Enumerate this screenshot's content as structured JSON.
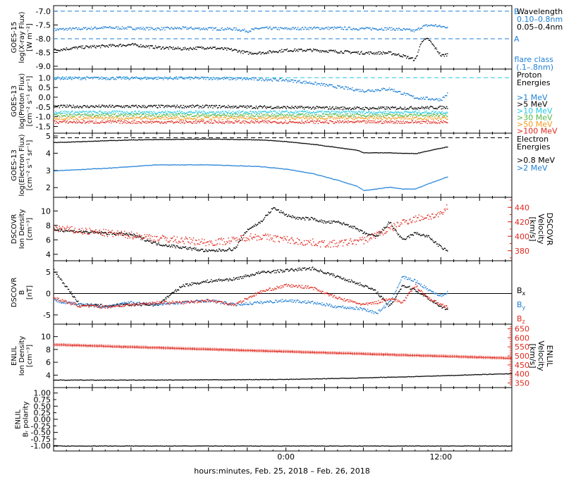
{
  "xaxis": {
    "label": "hours:minutes, Feb. 25, 2018 – Feb. 26, 2018",
    "xlim": [
      -18,
      17.5
    ],
    "ticks": [
      {
        "x": 0,
        "label": "0:00"
      },
      {
        "x": 12,
        "label": "12:00"
      }
    ]
  },
  "colors": {
    "black": "#000000",
    "blue": "#1e7fd6",
    "red": "#e0281e",
    "cyan": "#22c8e0",
    "green": "#56b847",
    "orange": "#f39a1f",
    "xray_long": "#1e7fd6",
    "xray_short": "#000000"
  },
  "chart_data": [
    {
      "id": "goes15-xray",
      "type": "line",
      "ylabel_lines": [
        "GOES-15",
        "log(X-ray Flux)",
        "[W m⁻²]"
      ],
      "ylim": [
        -9.0,
        -6.9
      ],
      "yticks": [
        -7.0,
        -7.5,
        -8.0,
        -8.5,
        -9.0
      ],
      "ytick_labels": [
        "-7.0",
        "-7.5",
        "-8.0",
        "-8.5",
        "-9.0"
      ],
      "ref_lines": [
        {
          "y": -7.0,
          "label": "B",
          "style": "dashed"
        },
        {
          "y": -8.0,
          "label": "A",
          "style": "dashed"
        }
      ],
      "legend_title": "Wavelength",
      "legend": [
        {
          "name": "0.10–0.8nm",
          "color": "#1e7fd6"
        },
        {
          "name": "0.05–0.4nm",
          "color": "#000000"
        }
      ],
      "legend_extra": [
        "flare class",
        "(.1–.8nm)"
      ],
      "series": [
        {
          "name": "0.10–0.8nm",
          "x": [
            -18,
            -16,
            -14,
            -12,
            -10,
            -8,
            -6,
            -4,
            -3,
            -2,
            0,
            2,
            4,
            6,
            8,
            9,
            10,
            10.5,
            11,
            11.5,
            12,
            12.5
          ],
          "y": [
            -7.65,
            -7.62,
            -7.58,
            -7.6,
            -7.62,
            -7.6,
            -7.62,
            -7.63,
            -7.7,
            -7.6,
            -7.62,
            -7.6,
            -7.6,
            -7.62,
            -7.62,
            -7.65,
            -7.7,
            -7.55,
            -7.5,
            -7.5,
            -7.55,
            -7.55
          ],
          "color": "#1e7fd6"
        },
        {
          "name": "0.05–0.4nm",
          "x": [
            -18,
            -16,
            -14,
            -12,
            -10,
            -8,
            -6,
            -4,
            -3,
            -2,
            0,
            2,
            4,
            6,
            8,
            9,
            10,
            10.5,
            11,
            11.5,
            12,
            12.5
          ],
          "y": [
            -8.4,
            -8.3,
            -8.25,
            -8.2,
            -8.3,
            -8.35,
            -8.3,
            -8.4,
            -8.5,
            -8.5,
            -8.4,
            -8.4,
            -8.45,
            -8.5,
            -8.5,
            -8.6,
            -8.75,
            -8.05,
            -8.0,
            -8.3,
            -8.6,
            -8.55
          ],
          "color": "#000000"
        }
      ]
    },
    {
      "id": "goes13-proton",
      "type": "line",
      "ylabel_lines": [
        "GOES-13",
        "log(Proton Flux)",
        "[cm⁻² s⁻¹ sr⁻¹]"
      ],
      "ylim": [
        -1.7,
        1.3
      ],
      "yticks": [
        1.0,
        0.5,
        0.0,
        -0.5,
        -1.0,
        -1.5
      ],
      "ytick_labels": [
        "1.0",
        "0.5",
        "0.0",
        "-0.5",
        "-1.0",
        "-1.5"
      ],
      "ref_lines": [
        {
          "y": 1.0,
          "label": "",
          "style": "dashed-cyan"
        }
      ],
      "legend_title": "Proton Energies",
      "legend": [
        {
          "name": ">1 MeV",
          "color": "#1e7fd6"
        },
        {
          "name": ">5 MeV",
          "color": "#000000"
        },
        {
          "name": ">10 MeV",
          "color": "#22c8e0"
        },
        {
          "name": ">30 MeV",
          "color": "#56b847"
        },
        {
          "name": ">50 MeV",
          "color": "#f39a1f"
        },
        {
          "name": ">100 MeV",
          "color": "#e0281e"
        }
      ],
      "series": [
        {
          "name": ">1 MeV",
          "x": [
            -18,
            -12,
            -6,
            -2,
            0,
            2,
            4,
            6,
            8,
            10,
            12,
            12.5
          ],
          "y": [
            1.0,
            1.0,
            1.0,
            0.95,
            0.9,
            0.75,
            0.55,
            0.35,
            0.45,
            0.0,
            -0.1,
            0.2
          ],
          "color": "#1e7fd6"
        },
        {
          "name": ">5 MeV",
          "x": [
            -18,
            -6,
            0,
            6,
            12.5
          ],
          "y": [
            -0.45,
            -0.45,
            -0.5,
            -0.55,
            -0.5
          ],
          "color": "#000000"
        },
        {
          "name": ">10 MeV",
          "x": [
            -18,
            12.5
          ],
          "y": [
            -0.75,
            -0.75
          ],
          "color": "#22c8e0"
        },
        {
          "name": ">30 MeV",
          "x": [
            -18,
            12.5
          ],
          "y": [
            -0.9,
            -0.9
          ],
          "color": "#56b847"
        },
        {
          "name": ">50 MeV",
          "x": [
            -18,
            12.5
          ],
          "y": [
            -1.05,
            -1.05
          ],
          "color": "#f39a1f"
        },
        {
          "name": ">100 MeV",
          "x": [
            -18,
            12.5
          ],
          "y": [
            -1.25,
            -1.25
          ],
          "color": "#e0281e"
        }
      ]
    },
    {
      "id": "goes13-electron",
      "type": "line",
      "ylabel_lines": [
        "GOES-13",
        "log(Electron Flux)",
        "[cm⁻² s⁻¹ sr⁻¹]"
      ],
      "ylim": [
        1.6,
        5.0
      ],
      "yticks": [
        5,
        4,
        3,
        2
      ],
      "ytick_labels": [
        "5",
        "4",
        "3",
        "2"
      ],
      "ref_lines": [
        {
          "y": 4.9,
          "label": "",
          "style": "dashed"
        }
      ],
      "legend_title": "Electron Energies",
      "legend": [
        {
          "name": ">0.8 MeV",
          "color": "#000000"
        },
        {
          "name": ">2 MeV",
          "color": "#1e7fd6"
        }
      ],
      "series": [
        {
          "name": ">0.8 MeV",
          "x": [
            -18,
            -12,
            -6,
            -2,
            0,
            2,
            4,
            5.5,
            6,
            8,
            10,
            12.5
          ],
          "y": [
            4.65,
            4.8,
            4.85,
            4.8,
            4.7,
            4.55,
            4.35,
            4.2,
            4.05,
            4.05,
            4.0,
            4.4
          ],
          "color": "#000000"
        },
        {
          "name": ">2 MeV",
          "x": [
            -18,
            -14,
            -10,
            -6,
            -2,
            0,
            2,
            4,
            5.5,
            6,
            7,
            8,
            9,
            10,
            11,
            12.5
          ],
          "y": [
            3.0,
            3.15,
            3.35,
            3.35,
            3.25,
            3.1,
            2.85,
            2.45,
            2.1,
            1.85,
            1.95,
            2.05,
            1.95,
            1.95,
            2.25,
            2.65
          ],
          "color": "#1e7fd6"
        }
      ]
    },
    {
      "id": "dscovr-plasma",
      "type": "scatter",
      "ylabel_lines": [
        "DSCOVR",
        "Ion Density",
        "[cm⁻³]"
      ],
      "ylim": [
        3.5,
        11.5
      ],
      "yticks": [
        10,
        8,
        6,
        4
      ],
      "ytick_labels": [
        "10",
        "8",
        "6",
        "4"
      ],
      "y2label_lines": [
        "DSCOVR",
        "Velocity",
        "[km/s]"
      ],
      "y2lim": [
        370,
        450
      ],
      "y2ticks": [
        440,
        420,
        400,
        380
      ],
      "y2tick_labels": [
        "440",
        "420",
        "400",
        "380"
      ],
      "series": [
        {
          "name": "Ion Density",
          "axis": "left",
          "x": [
            -18,
            -16,
            -14,
            -12,
            -10,
            -8,
            -6,
            -4,
            -3,
            -2,
            -1,
            0,
            1,
            2,
            3,
            4,
            5,
            6,
            7,
            8,
            9,
            10,
            11,
            12,
            12.5
          ],
          "y": [
            7.5,
            7.2,
            7.0,
            6.8,
            5.5,
            5.0,
            4.5,
            4.8,
            7.5,
            8.5,
            10.5,
            9.5,
            9.0,
            9.0,
            8.5,
            8.5,
            8.0,
            7.0,
            6.5,
            8.5,
            6.0,
            7.0,
            6.5,
            5.0,
            4.5
          ],
          "color": "#000000"
        },
        {
          "name": "Velocity",
          "axis": "right",
          "x": [
            -18,
            -16,
            -14,
            -12,
            -10,
            -8,
            -6,
            -4,
            -3,
            -2,
            -1,
            0,
            1,
            2,
            3,
            4,
            5,
            6,
            7,
            8,
            9,
            10,
            11,
            12,
            12.5
          ],
          "y": [
            412,
            408,
            405,
            402,
            398,
            395,
            392,
            395,
            400,
            400,
            398,
            396,
            393,
            392,
            390,
            390,
            393,
            395,
            403,
            410,
            420,
            425,
            428,
            430,
            442
          ],
          "color": "#e0281e"
        }
      ]
    },
    {
      "id": "dscovr-mag",
      "type": "scatter",
      "ylabel_lines": [
        "DSCOVR",
        "B",
        "[nT]"
      ],
      "ylim": [
        -6.5,
        7.0
      ],
      "yticks": [
        5,
        0,
        -5
      ],
      "ytick_labels": [
        "5",
        "0",
        "-5"
      ],
      "ref_lines": [
        {
          "y": 0,
          "label": "",
          "style": "solid"
        }
      ],
      "legend": [
        {
          "name": "Bx",
          "color": "#000000"
        },
        {
          "name": "By",
          "color": "#1e7fd6"
        },
        {
          "name": "Bz",
          "color": "#e0281e"
        }
      ],
      "series": [
        {
          "name": "Bx",
          "x": [
            -18,
            -16,
            -14,
            -12,
            -10,
            -8,
            -6,
            -4,
            -2,
            0,
            2,
            4,
            6,
            7,
            8,
            9,
            10,
            11,
            12,
            12.5
          ],
          "y": [
            5.5,
            -2.5,
            -2.8,
            -2.5,
            -2.5,
            2.0,
            3.0,
            3.5,
            5.0,
            5.5,
            6.0,
            4.0,
            2.0,
            0.5,
            -3.0,
            2.0,
            1.0,
            -1.0,
            -3.0,
            -3.5
          ],
          "color": "#000000"
        },
        {
          "name": "By",
          "x": [
            -18,
            -16,
            -14,
            -12,
            -10,
            -8,
            -6,
            -4,
            -2,
            0,
            2,
            4,
            6,
            7,
            8,
            9,
            10,
            11,
            12,
            12.5
          ],
          "y": [
            -1.5,
            -2.5,
            -3.0,
            -2.0,
            -2.5,
            -2.0,
            -1.5,
            -2.5,
            -2.0,
            -1.5,
            -2.0,
            -3.0,
            -3.5,
            -4.5,
            -2.0,
            4.0,
            3.0,
            1.0,
            -0.5,
            0.5
          ],
          "color": "#1e7fd6"
        },
        {
          "name": "Bz",
          "x": [
            -18,
            -16,
            -14,
            -12,
            -10,
            -8,
            -6,
            -4,
            -2,
            0,
            2,
            4,
            6,
            7,
            8,
            9,
            10,
            11,
            12,
            12.5
          ],
          "y": [
            -1.0,
            -2.8,
            -3.0,
            -2.5,
            -2.0,
            -2.0,
            -1.5,
            -2.5,
            0.5,
            2.0,
            1.5,
            -1.0,
            -2.5,
            -2.0,
            -1.0,
            -2.0,
            2.0,
            -1.0,
            -2.5,
            -3.0
          ],
          "color": "#e0281e"
        }
      ]
    },
    {
      "id": "enlil-plasma",
      "type": "line",
      "ylabel_lines": [
        "ENLIL",
        "Ion Density",
        "[cm⁻³]"
      ],
      "ylim": [
        2.5,
        11.5
      ],
      "yticks": [
        10,
        8,
        6,
        4
      ],
      "ytick_labels": [
        "10",
        "8",
        "6",
        "4"
      ],
      "y2label_lines": [
        "ENLIL",
        "Velocity",
        "[km/s]"
      ],
      "y2lim": [
        340,
        660
      ],
      "y2ticks": [
        650,
        600,
        550,
        500,
        450,
        400,
        350
      ],
      "y2tick_labels": [
        "650",
        "600",
        "550",
        "500",
        "450",
        "400",
        "350"
      ],
      "series": [
        {
          "name": "Ion Density",
          "axis": "left",
          "x": [
            -18,
            -10,
            0,
            5,
            10,
            14,
            17.5
          ],
          "y": [
            3.3,
            3.3,
            3.4,
            3.6,
            3.85,
            4.1,
            4.3
          ],
          "color": "#000000"
        },
        {
          "name": "Velocity",
          "axis": "right",
          "x": [
            -18,
            17.5
          ],
          "y": [
            565,
            490
          ],
          "color": "#e0281e"
        }
      ]
    },
    {
      "id": "enlil-polarity",
      "type": "line",
      "ylabel_lines": [
        "ENLIL",
        "Bᵣ polarity"
      ],
      "ylim": [
        -1.1,
        1.1
      ],
      "yticks": [
        1.0,
        0.5,
        0.0,
        -0.5,
        -1.0
      ],
      "ytick_labels": [
        "1.00",
        "0.50",
        "0.00",
        "-0.50",
        "-1.00"
      ],
      "extra_ticks": [
        0.75,
        0.25,
        -0.25,
        -0.75
      ],
      "extra_tick_labels": [
        "0.75",
        "0.25",
        "-0.25",
        "-0.75"
      ],
      "series": [
        {
          "name": "Br polarity",
          "x": [
            -18,
            17.5
          ],
          "y": [
            -1.0,
            -1.0
          ],
          "color": "#000000"
        }
      ]
    }
  ]
}
